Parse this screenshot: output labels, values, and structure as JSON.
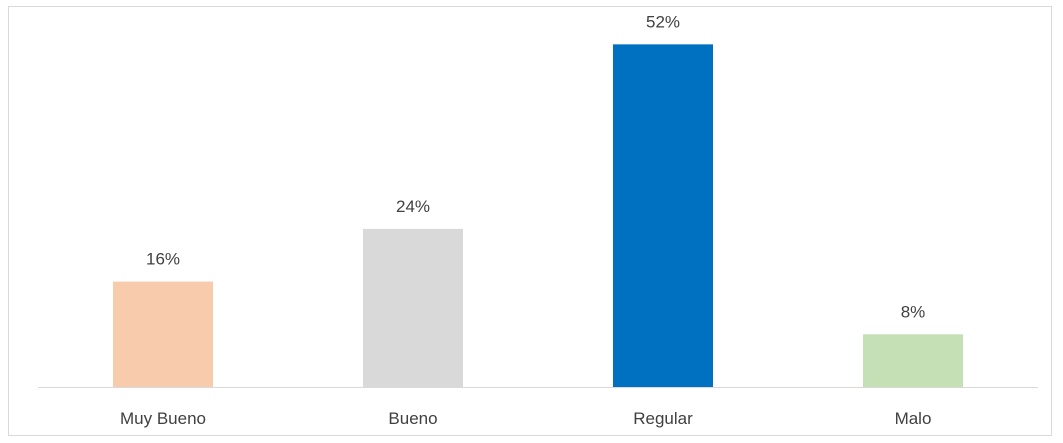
{
  "chart_data": {
    "type": "bar",
    "categories": [
      "Muy Bueno",
      "Bueno",
      "Regular",
      "Malo"
    ],
    "values": [
      16,
      24,
      52,
      8
    ],
    "data_labels": [
      "16%",
      "24%",
      "52%",
      "8%"
    ],
    "ylim": [
      0,
      56
    ],
    "grid": false,
    "legend": "none",
    "colors": [
      "#f8cbad",
      "#d9d9d9",
      "#0070c0",
      "#c5e0b4"
    ],
    "axis_color": "#d9d9d9",
    "text_color": "#404040"
  }
}
